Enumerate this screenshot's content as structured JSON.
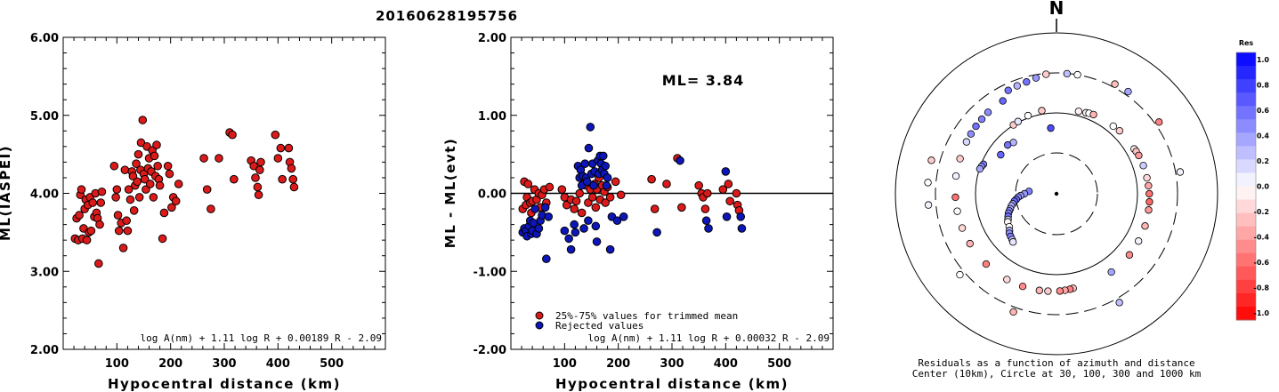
{
  "title": "20160628195756",
  "chart_data": [
    {
      "type": "scatter",
      "name": "left",
      "xlabel": "Hypocentral distance (km)",
      "ylabel": "ML(IASPEI)",
      "xlim": [
        0,
        600
      ],
      "ylim": [
        2.0,
        6.0
      ],
      "xticks": [
        "100",
        "200",
        "300",
        "400",
        "500"
      ],
      "yticks": [
        "2.00",
        "3.00",
        "4.00",
        "5.00",
        "6.00"
      ],
      "formula": "log A(nm) + 1.11 log R + 0.00189 R - 2.09",
      "points": [
        [
          22,
          3.42
        ],
        [
          25,
          3.68
        ],
        [
          28,
          3.4
        ],
        [
          30,
          3.72
        ],
        [
          32,
          3.98
        ],
        [
          34,
          4.05
        ],
        [
          36,
          3.42
        ],
        [
          38,
          3.55
        ],
        [
          40,
          3.8
        ],
        [
          42,
          3.92
        ],
        [
          44,
          3.4
        ],
        [
          46,
          3.85
        ],
        [
          48,
          3.5
        ],
        [
          50,
          3.95
        ],
        [
          52,
          3.52
        ],
        [
          55,
          3.88
        ],
        [
          58,
          3.7
        ],
        [
          60,
          4.0
        ],
        [
          62,
          3.75
        ],
        [
          64,
          3.68
        ],
        [
          66,
          3.1
        ],
        [
          68,
          3.6
        ],
        [
          70,
          3.88
        ],
        [
          72,
          4.02
        ],
        [
          95,
          4.35
        ],
        [
          98,
          3.95
        ],
        [
          100,
          4.05
        ],
        [
          102,
          3.72
        ],
        [
          104,
          3.52
        ],
        [
          108,
          3.62
        ],
        [
          112,
          3.3
        ],
        [
          115,
          4.3
        ],
        [
          118,
          3.65
        ],
        [
          120,
          3.52
        ],
        [
          122,
          4.05
        ],
        [
          125,
          3.92
        ],
        [
          128,
          4.28
        ],
        [
          130,
          4.22
        ],
        [
          132,
          3.78
        ],
        [
          134,
          4.1
        ],
        [
          136,
          4.38
        ],
        [
          138,
          4.15
        ],
        [
          140,
          4.5
        ],
        [
          142,
          3.95
        ],
        [
          144,
          4.3
        ],
        [
          145,
          4.65
        ],
        [
          148,
          4.94
        ],
        [
          150,
          4.25
        ],
        [
          152,
          4.18
        ],
        [
          154,
          4.05
        ],
        [
          156,
          4.6
        ],
        [
          158,
          4.32
        ],
        [
          160,
          4.45
        ],
        [
          162,
          4.12
        ],
        [
          164,
          4.28
        ],
        [
          166,
          4.55
        ],
        [
          168,
          3.95
        ],
        [
          170,
          4.48
        ],
        [
          172,
          4.22
        ],
        [
          174,
          4.62
        ],
        [
          176,
          4.35
        ],
        [
          178,
          4.18
        ],
        [
          180,
          4.1
        ],
        [
          185,
          3.42
        ],
        [
          188,
          3.75
        ],
        [
          195,
          4.35
        ],
        [
          198,
          4.25
        ],
        [
          202,
          3.82
        ],
        [
          205,
          3.95
        ],
        [
          210,
          3.9
        ],
        [
          215,
          4.12
        ],
        [
          262,
          4.45
        ],
        [
          268,
          4.05
        ],
        [
          275,
          3.8
        ],
        [
          290,
          4.45
        ],
        [
          310,
          4.78
        ],
        [
          315,
          4.75
        ],
        [
          318,
          4.18
        ],
        [
          350,
          4.42
        ],
        [
          355,
          4.35
        ],
        [
          358,
          4.2
        ],
        [
          362,
          4.08
        ],
        [
          364,
          3.98
        ],
        [
          366,
          4.3
        ],
        [
          368,
          4.4
        ],
        [
          395,
          4.75
        ],
        [
          400,
          4.45
        ],
        [
          405,
          4.58
        ],
        [
          408,
          4.18
        ],
        [
          420,
          4.58
        ],
        [
          422,
          4.4
        ],
        [
          425,
          4.32
        ],
        [
          428,
          4.18
        ],
        [
          430,
          4.08
        ]
      ]
    },
    {
      "type": "scatter",
      "name": "middle",
      "xlabel": "Hypocentral distance (km)",
      "ylabel": "ML - ML(evt)",
      "xlim": [
        0,
        600
      ],
      "ylim": [
        -2.0,
        2.0
      ],
      "xticks": [
        "100",
        "200",
        "300",
        "400",
        "500"
      ],
      "yticks": [
        "-2.00",
        "-1.00",
        "0.00",
        "1.00",
        "2.00"
      ],
      "ml_label": "ML= 3.84",
      "formula": "log A(nm) + 1.11 log R + 0.00032 R - 2.09",
      "legend": [
        "25%-75% values for trimmed mean",
        "Rejected values"
      ],
      "colors": {
        "kept": "#dd1a1a",
        "rejected": "#0d16b8"
      },
      "kept": [
        [
          22,
          -0.2
        ],
        [
          25,
          0.15
        ],
        [
          28,
          -0.15
        ],
        [
          30,
          -0.05
        ],
        [
          32,
          0.12
        ],
        [
          36,
          -0.12
        ],
        [
          38,
          -0.25
        ],
        [
          40,
          -0.1
        ],
        [
          44,
          0.05
        ],
        [
          48,
          -0.08
        ],
        [
          52,
          0.0
        ],
        [
          55,
          -0.18
        ],
        [
          58,
          -0.02
        ],
        [
          62,
          0.05
        ],
        [
          66,
          -0.12
        ],
        [
          72,
          0.08
        ],
        [
          95,
          0.05
        ],
        [
          100,
          -0.05
        ],
        [
          104,
          -0.15
        ],
        [
          112,
          -0.08
        ],
        [
          118,
          -0.2
        ],
        [
          122,
          -0.1
        ],
        [
          128,
          0.0
        ],
        [
          132,
          -0.25
        ],
        [
          136,
          0.18
        ],
        [
          140,
          0.1
        ],
        [
          144,
          -0.12
        ],
        [
          148,
          0.05
        ],
        [
          152,
          -0.05
        ],
        [
          156,
          0.12
        ],
        [
          158,
          -0.18
        ],
        [
          160,
          0.05
        ],
        [
          164,
          0.2
        ],
        [
          166,
          -0.08
        ],
        [
          170,
          0.1
        ],
        [
          174,
          0.02
        ],
        [
          176,
          -0.12
        ],
        [
          180,
          0.08
        ],
        [
          185,
          -0.05
        ],
        [
          195,
          0.15
        ],
        [
          205,
          -0.02
        ],
        [
          262,
          0.18
        ],
        [
          268,
          -0.2
        ],
        [
          290,
          0.12
        ],
        [
          310,
          0.45
        ],
        [
          318,
          -0.18
        ],
        [
          350,
          0.1
        ],
        [
          355,
          0.0
        ],
        [
          358,
          -0.05
        ],
        [
          362,
          -0.2
        ],
        [
          366,
          0.0
        ],
        [
          395,
          0.05
        ],
        [
          405,
          0.12
        ],
        [
          408,
          -0.1
        ],
        [
          420,
          0.0
        ],
        [
          422,
          -0.15
        ],
        [
          425,
          -0.22
        ]
      ],
      "rejected": [
        [
          22,
          -0.5
        ],
        [
          25,
          -0.45
        ],
        [
          28,
          -0.48
        ],
        [
          30,
          -0.55
        ],
        [
          34,
          -0.42
        ],
        [
          36,
          -0.35
        ],
        [
          38,
          -0.52
        ],
        [
          40,
          -0.48
        ],
        [
          42,
          -0.38
        ],
        [
          45,
          -0.2
        ],
        [
          48,
          -0.52
        ],
        [
          52,
          -0.45
        ],
        [
          55,
          -0.35
        ],
        [
          58,
          -0.28
        ],
        [
          64,
          -0.18
        ],
        [
          66,
          -0.84
        ],
        [
          70,
          -0.3
        ],
        [
          100,
          -0.48
        ],
        [
          108,
          -0.58
        ],
        [
          112,
          -0.72
        ],
        [
          118,
          -0.4
        ],
        [
          120,
          -0.5
        ],
        [
          125,
          0.35
        ],
        [
          128,
          0.2
        ],
        [
          130,
          0.3
        ],
        [
          132,
          0.1
        ],
        [
          134,
          0.22
        ],
        [
          136,
          -0.45
        ],
        [
          138,
          0.38
        ],
        [
          140,
          0.2
        ],
        [
          142,
          0.15
        ],
        [
          144,
          -0.35
        ],
        [
          145,
          0.58
        ],
        [
          148,
          0.85
        ],
        [
          150,
          0.25
        ],
        [
          152,
          0.38
        ],
        [
          154,
          0.1
        ],
        [
          156,
          0.28
        ],
        [
          158,
          -0.42
        ],
        [
          160,
          -0.62
        ],
        [
          162,
          0.42
        ],
        [
          164,
          0.25
        ],
        [
          166,
          0.48
        ],
        [
          168,
          0.38
        ],
        [
          170,
          0.3
        ],
        [
          172,
          0.48
        ],
        [
          174,
          0.25
        ],
        [
          176,
          0.35
        ],
        [
          178,
          0.1
        ],
        [
          180,
          0.2
        ],
        [
          185,
          -0.72
        ],
        [
          188,
          -0.3
        ],
        [
          198,
          -0.35
        ],
        [
          210,
          -0.3
        ],
        [
          272,
          -0.5
        ],
        [
          315,
          0.42
        ],
        [
          364,
          -0.35
        ],
        [
          368,
          -0.45
        ],
        [
          400,
          0.28
        ],
        [
          402,
          -0.3
        ],
        [
          428,
          -0.3
        ],
        [
          430,
          -0.45
        ]
      ]
    },
    {
      "type": "polar-scatter",
      "name": "right",
      "north_label": "N",
      "caption_line1": "Residuals as a function of azimuth and distance",
      "caption_line2": "Center (10km), Circle at 30, 100, 300 and 1000 km",
      "colorbar_title": "Res",
      "colorbar_ticks": [
        "1.0",
        "0.8",
        "0.6",
        "0.4",
        "0.2",
        "0.0",
        "-0.2",
        "-0.4",
        "-0.6",
        "-0.8",
        "-1.0"
      ],
      "stations": [
        [
          -85,
          0.5
        ],
        [
          -90,
          0.4
        ],
        [
          -93,
          0.35
        ],
        [
          -95,
          0.45
        ],
        [
          -98,
          0.55
        ],
        [
          -100,
          0.6
        ],
        [
          -103,
          0.4
        ],
        [
          -105,
          0.3
        ],
        [
          -108,
          0.35
        ],
        [
          -110,
          0.45
        ],
        [
          -112,
          0.5
        ],
        [
          -115,
          0.55
        ],
        [
          -118,
          0.2
        ],
        [
          -120,
          -0.05
        ],
        [
          -125,
          0.0
        ],
        [
          -128,
          0.3
        ],
        [
          -130,
          0.45
        ],
        [
          -133,
          0.5
        ],
        [
          -136,
          0.25
        ],
        [
          -138,
          0.1
        ],
        [
          -5,
          0.7
        ],
        [
          -40,
          0.3
        ],
        [
          -55,
          0.6
        ],
        [
          -45,
          0.55
        ],
        [
          -68,
          0.5
        ],
        [
          -70,
          0.45
        ],
        [
          -72,
          0.35
        ],
        [
          -32,
          -0.2
        ],
        [
          -28,
          0.1
        ],
        [
          -20,
          0.0
        ],
        [
          -10,
          -0.2
        ],
        [
          15,
          -0.05
        ],
        [
          20,
          0.05
        ],
        [
          22,
          0.0
        ],
        [
          25,
          -0.3
        ],
        [
          40,
          0.0
        ],
        [
          45,
          -0.2
        ],
        [
          60,
          -0.05
        ],
        [
          62,
          -0.25
        ],
        [
          65,
          -0.4
        ],
        [
          72,
          0.2
        ],
        [
          80,
          -0.15
        ],
        [
          85,
          -0.35
        ],
        [
          90,
          -0.55
        ],
        [
          95,
          -0.6
        ],
        [
          100,
          -0.4
        ],
        [
          110,
          -0.3
        ],
        [
          120,
          0.05
        ],
        [
          130,
          -0.45
        ],
        [
          145,
          0.35
        ],
        [
          170,
          -0.25
        ],
        [
          172,
          -0.5
        ],
        [
          175,
          -0.35
        ],
        [
          178,
          -0.45
        ],
        [
          185,
          -0.2
        ],
        [
          190,
          -0.3
        ],
        [
          200,
          -0.45
        ],
        [
          210,
          -0.15
        ],
        [
          225,
          -0.5
        ],
        [
          240,
          -0.3
        ],
        [
          250,
          -0.15
        ],
        [
          260,
          0.0
        ],
        [
          268,
          -0.55
        ],
        [
          280,
          0.05
        ],
        [
          290,
          -0.2
        ],
        [
          300,
          0.15
        ],
        [
          305,
          0.45
        ],
        [
          310,
          0.55
        ],
        [
          315,
          0.5
        ],
        [
          320,
          0.45
        ],
        [
          330,
          0.6
        ],
        [
          335,
          0.55
        ],
        [
          340,
          0.3
        ],
        [
          345,
          0.55
        ],
        [
          350,
          0.4
        ],
        [
          355,
          -0.2
        ],
        [
          5,
          0.25
        ],
        [
          10,
          0.0
        ],
        [
          28,
          -0.25
        ],
        [
          35,
          0.35
        ],
        [
          55,
          -0.5
        ],
        [
          80,
          0.05
        ],
        [
          150,
          0.25
        ],
        [
          200,
          -0.3
        ],
        [
          230,
          0.0
        ],
        [
          265,
          0.05
        ],
        [
          275,
          0.0
        ],
        [
          285,
          -0.2
        ]
      ]
    }
  ]
}
